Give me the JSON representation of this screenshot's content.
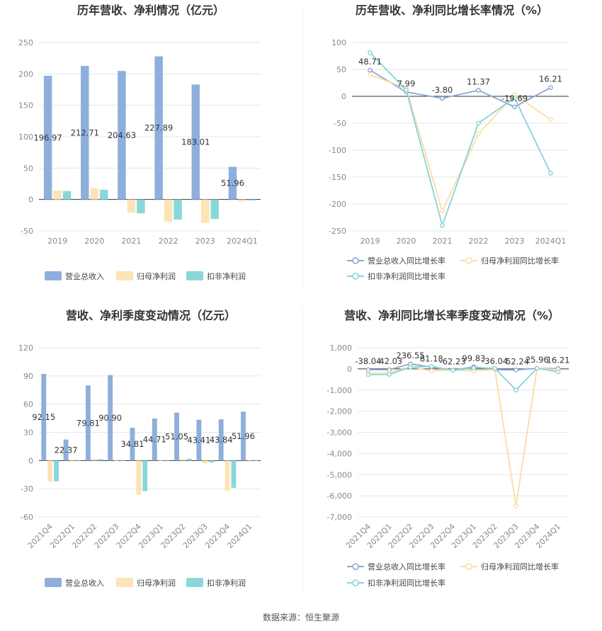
{
  "source": "数据来源：恒生聚源",
  "colors": {
    "revenue": "#8eafdb",
    "parent_profit": "#fde3b5",
    "deducted_profit": "#8ad7da",
    "revenue_line": "#8aa6d6",
    "parent_line": "#fddca6",
    "deducted_line": "#86d3d8"
  },
  "chart_data": [
    {
      "type": "bar",
      "title": "历年营收、净利情况（亿元）",
      "categories": [
        "2019",
        "2020",
        "2021",
        "2022",
        "2023",
        "2024Q1"
      ],
      "ylim": [
        -50,
        250
      ],
      "yticks": [
        250,
        200,
        150,
        100,
        50,
        0,
        -50
      ],
      "grid": true,
      "legend_position": "bottom",
      "series": [
        {
          "name": "营业总收入",
          "values": [
            196.97,
            212.71,
            204.63,
            227.89,
            183.01,
            51.96
          ],
          "labels": [
            "196.97",
            "212.71",
            "204.63",
            "227.89",
            "183.01",
            "51.96"
          ]
        },
        {
          "name": "归母净利润",
          "values": [
            14.5,
            18.0,
            -21.0,
            -35.5,
            -37.0,
            -3.0
          ]
        },
        {
          "name": "扣非净利润",
          "values": [
            13.5,
            15.5,
            -22.0,
            -32.0,
            -31.0,
            -1.5
          ]
        }
      ]
    },
    {
      "type": "line",
      "title": "历年营收、净利同比增长率情况（%）",
      "categories": [
        "2019",
        "2020",
        "2021",
        "2022",
        "2023",
        "2024Q1"
      ],
      "ylim": [
        -250,
        100
      ],
      "yticks": [
        100,
        50,
        0,
        -50,
        -100,
        -150,
        -200,
        -250
      ],
      "grid": true,
      "legend_position": "bottom",
      "series": [
        {
          "name": "营业总收入同比增长率",
          "values": [
            48.71,
            7.99,
            -3.8,
            11.37,
            -19.69,
            16.21
          ],
          "labels": [
            "48.71",
            "7.99",
            "-3.80",
            "11.37",
            "-19.69",
            "16.21"
          ]
        },
        {
          "name": "归母净利润同比增长率",
          "values": [
            40,
            15,
            -213,
            -70,
            3,
            -43
          ]
        },
        {
          "name": "扣非净利润同比增长率",
          "values": [
            81,
            12,
            -240,
            -50,
            -3,
            -143
          ]
        }
      ]
    },
    {
      "type": "bar",
      "title": "营收、净利季度变动情况（亿元）",
      "categories": [
        "2021Q4",
        "2022Q1",
        "2022Q2",
        "2022Q3",
        "2022Q4",
        "2023Q1",
        "2023Q2",
        "2023Q3",
        "2023Q4",
        "2024Q1"
      ],
      "ylim": [
        -60,
        120
      ],
      "yticks": [
        120,
        90,
        60,
        30,
        0,
        -30,
        -60
      ],
      "grid": true,
      "legend_position": "bottom",
      "series": [
        {
          "name": "营业总收入",
          "values": [
            92.15,
            22.37,
            79.81,
            90.9,
            34.81,
            44.71,
            51.05,
            43.41,
            43.84,
            51.96
          ],
          "labels": [
            "92.15",
            "22.37",
            "79.81",
            "90.90",
            "34.81",
            "44.71",
            "51.05",
            "43.41",
            "43.84",
            "51.96"
          ]
        },
        {
          "name": "归母净利润",
          "values": [
            -22.5,
            -1.0,
            2.0,
            -0.5,
            -36.5,
            -0.5,
            1.5,
            -3.0,
            -32.5,
            -1.0
          ]
        },
        {
          "name": "扣非净利润",
          "values": [
            -22.0,
            -0.5,
            1.5,
            -0.5,
            -32.5,
            0.3,
            2.0,
            -2.0,
            -29.0,
            -0.5
          ]
        }
      ]
    },
    {
      "type": "line",
      "title": "营收、净利同比增长率季度变动情况（%）",
      "categories": [
        "2021Q4",
        "2022Q1",
        "2022Q2",
        "2022Q3",
        "2022Q4",
        "2023Q1",
        "2023Q2",
        "2023Q3",
        "2023Q4",
        "2024Q1"
      ],
      "ylim": [
        -7000,
        1000
      ],
      "yticks": [
        1000,
        0,
        -1000,
        -2000,
        -3000,
        -4000,
        -5000,
        -6000,
        -7000
      ],
      "ytick_labels": [
        "1,000",
        "0",
        "-1,000",
        "-2,000",
        "-3,000",
        "-4,000",
        "-5,000",
        "-6,000",
        "-7,000"
      ],
      "grid": true,
      "legend_position": "bottom",
      "series": [
        {
          "name": "营业总收入同比增长率",
          "values": [
            -38.04,
            -42.03,
            236.55,
            81.18,
            -62.23,
            99.83,
            -36.04,
            -52.24,
            25.96,
            16.21
          ],
          "labels": [
            "-38.04",
            "-42.03",
            "236.55",
            "81.18",
            "-62.23",
            "99.83",
            "-36.04",
            "-52.24",
            "25.96",
            "16.21"
          ]
        },
        {
          "name": "归母净利润同比增长率",
          "values": [
            -200,
            -180,
            100,
            -100,
            -40,
            -100,
            -30,
            -6480,
            30,
            -40
          ]
        },
        {
          "name": "扣非净利润同比增长率",
          "values": [
            -270,
            -260,
            80,
            120,
            -70,
            50,
            30,
            -1000,
            30,
            -140
          ]
        }
      ]
    }
  ]
}
